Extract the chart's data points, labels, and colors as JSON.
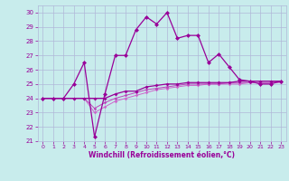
{
  "xlabel": "Windchill (Refroidissement éolien,°C)",
  "bg_color": "#c8ecec",
  "grid_color": "#b0b8d8",
  "line_color_main": "#990099",
  "line_color_2": "#bb44bb",
  "line_color_3": "#cc66cc",
  "xlim": [
    -0.5,
    23.5
  ],
  "ylim": [
    21,
    30.5
  ],
  "yticks": [
    21,
    22,
    23,
    24,
    25,
    26,
    27,
    28,
    29,
    30
  ],
  "xticks": [
    0,
    1,
    2,
    3,
    4,
    5,
    6,
    7,
    8,
    9,
    10,
    11,
    12,
    13,
    14,
    15,
    16,
    17,
    18,
    19,
    20,
    21,
    22,
    23
  ],
  "hours": [
    0,
    1,
    2,
    3,
    4,
    5,
    6,
    7,
    8,
    9,
    10,
    11,
    12,
    13,
    14,
    15,
    16,
    17,
    18,
    19,
    20,
    21,
    22,
    23
  ],
  "windchill": [
    24.0,
    24.0,
    24.0,
    25.0,
    26.5,
    21.3,
    24.3,
    27.0,
    27.0,
    28.8,
    29.7,
    29.2,
    30.0,
    28.2,
    28.4,
    28.4,
    26.5,
    27.1,
    26.2,
    25.3,
    25.2,
    25.0,
    25.0,
    25.2
  ],
  "temp_obs": [
    24.0,
    24.0,
    24.0,
    24.0,
    24.0,
    24.0,
    24.0,
    24.3,
    24.5,
    24.5,
    24.8,
    24.9,
    25.0,
    25.0,
    25.1,
    25.1,
    25.1,
    25.1,
    25.1,
    25.2,
    25.2,
    25.2,
    25.2,
    25.2
  ],
  "line2": [
    24.0,
    24.0,
    24.0,
    24.0,
    24.0,
    23.3,
    23.7,
    24.0,
    24.2,
    24.4,
    24.6,
    24.7,
    24.8,
    24.9,
    25.0,
    25.0,
    25.0,
    25.0,
    25.1,
    25.1,
    25.1,
    25.1,
    25.1,
    25.2
  ],
  "line3": [
    24.0,
    24.0,
    24.0,
    24.0,
    24.0,
    23.0,
    23.4,
    23.8,
    24.0,
    24.2,
    24.4,
    24.6,
    24.7,
    24.8,
    24.9,
    24.9,
    25.0,
    25.0,
    25.0,
    25.0,
    25.1,
    25.1,
    25.1,
    25.1
  ]
}
